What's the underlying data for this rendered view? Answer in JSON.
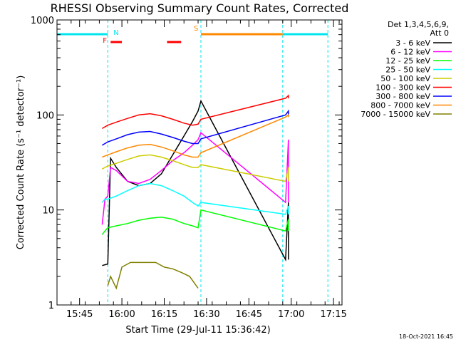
{
  "chart_data": {
    "type": "line",
    "title": "RHESSI Observing Summary Count Rates, Corrected",
    "xlabel": "Start Time (29-Jul-11 15:36:42)",
    "ylabel": "Corrected Count Rate (s⁻¹ detector⁻¹)",
    "yscale": "log",
    "ylim": [
      1,
      1000
    ],
    "xlim": [
      "15:37",
      "17:18"
    ],
    "y_ticks": [
      "1",
      "10",
      "100",
      "1000"
    ],
    "x_ticks": [
      "15:45",
      "16:00",
      "16:15",
      "16:30",
      "16:45",
      "17:00",
      "17:15"
    ],
    "legend_header": [
      "Det 1,3,4,5,6,9,",
      "Att 0"
    ],
    "legend_position": "right",
    "footer_date": "18-Oct-2021 16:45",
    "flag_labels": [
      "N",
      "F",
      "S"
    ],
    "flags": {
      "night_lines": [
        "15:55",
        "16:28",
        "16:57",
        "17:13"
      ],
      "saa_level_segments": [
        [
          "15:37",
          "15:55"
        ],
        [
          "16:28",
          "16:57"
        ],
        [
          "16:57",
          "17:13"
        ]
      ],
      "flare_segments": [
        [
          "15:56",
          "16:00"
        ],
        [
          "16:16",
          "16:21"
        ]
      ]
    },
    "series": [
      {
        "name": "3 - 6 keV",
        "color": "#000000",
        "x": [
          "15:53",
          "15:55",
          "15:56",
          "15:58",
          "16:02",
          "16:06",
          "16:10",
          "16:14",
          "16:18",
          "16:22",
          "16:25",
          "16:27",
          "16:28",
          "16:58",
          "16:59",
          "16:59"
        ],
        "y": [
          2.6,
          2.7,
          35,
          28,
          20,
          18,
          19,
          24,
          38,
          60,
          85,
          110,
          140,
          3,
          12,
          3
        ]
      },
      {
        "name": "6 - 12 keV",
        "color": "#ff00ff",
        "x": [
          "15:53",
          "15:54",
          "15:55",
          "15:56",
          "15:58",
          "16:02",
          "16:06",
          "16:10",
          "16:14",
          "16:18",
          "16:22",
          "16:25",
          "16:27",
          "16:28",
          "16:58",
          "16:59",
          "16:59"
        ],
        "y": [
          7,
          13,
          14,
          28,
          26,
          20,
          19,
          21,
          26,
          33,
          40,
          48,
          55,
          65,
          12,
          55,
          12
        ]
      },
      {
        "name": "12 - 25 keV",
        "color": "#00ff00",
        "x": [
          "15:53",
          "15:54",
          "15:55",
          "15:58",
          "16:02",
          "16:06",
          "16:10",
          "16:14",
          "16:18",
          "16:22",
          "16:25",
          "16:27",
          "16:28",
          "16:58",
          "16:59",
          "16:59"
        ],
        "y": [
          5.5,
          6,
          6.5,
          6.8,
          7.2,
          7.8,
          8.2,
          8.4,
          8,
          7.2,
          6.8,
          6.5,
          10,
          6,
          8,
          6
        ]
      },
      {
        "name": "25 - 50 keV",
        "color": "#00ffff",
        "x": [
          "15:53",
          "15:54",
          "15:55",
          "15:58",
          "16:02",
          "16:06",
          "16:10",
          "16:14",
          "16:18",
          "16:22",
          "16:25",
          "16:27",
          "16:28",
          "16:58",
          "16:59",
          "16:59"
        ],
        "y": [
          12,
          13,
          13,
          14,
          16,
          18,
          19,
          18,
          16,
          14,
          12,
          11,
          12,
          9,
          11,
          9
        ]
      },
      {
        "name": "50 - 100 keV",
        "color": "#cccc00",
        "x": [
          "15:53",
          "15:54",
          "15:55",
          "15:58",
          "16:02",
          "16:06",
          "16:10",
          "16:14",
          "16:18",
          "16:22",
          "16:25",
          "16:27",
          "16:28",
          "16:58",
          "16:59",
          "16:59"
        ],
        "y": [
          27,
          28,
          29,
          31,
          34,
          37,
          38,
          36,
          33,
          30,
          28,
          28,
          30,
          20,
          28,
          20
        ]
      },
      {
        "name": "100 - 300 keV",
        "color": "#ff0000",
        "x": [
          "15:53",
          "15:54",
          "15:55",
          "15:58",
          "16:02",
          "16:06",
          "16:10",
          "16:14",
          "16:18",
          "16:22",
          "16:25",
          "16:27",
          "16:28",
          "16:58",
          "16:59",
          "16:59"
        ],
        "y": [
          72,
          75,
          78,
          84,
          92,
          100,
          103,
          98,
          90,
          82,
          78,
          80,
          90,
          150,
          160,
          150
        ]
      },
      {
        "name": "300 - 800 keV",
        "color": "#0000ff",
        "x": [
          "15:53",
          "15:54",
          "15:55",
          "15:58",
          "16:02",
          "16:06",
          "16:10",
          "16:14",
          "16:18",
          "16:22",
          "16:25",
          "16:27",
          "16:28",
          "16:58",
          "16:59",
          "16:59"
        ],
        "y": [
          48,
          50,
          52,
          56,
          62,
          66,
          67,
          63,
          58,
          53,
          50,
          50,
          56,
          100,
          110,
          100
        ]
      },
      {
        "name": "800 - 7000 keV",
        "color": "#ff8800",
        "x": [
          "15:53",
          "15:54",
          "15:55",
          "15:58",
          "16:02",
          "16:06",
          "16:10",
          "16:14",
          "16:18",
          "16:22",
          "16:25",
          "16:27",
          "16:28",
          "16:58",
          "16:59",
          "16:59"
        ],
        "y": [
          36,
          37,
          38,
          41,
          45,
          48,
          49,
          46,
          42,
          38,
          36,
          36,
          40,
          95,
          100,
          95
        ]
      },
      {
        "name": "7000 - 15000 keV",
        "color": "#808000",
        "x": [
          "15:55",
          "15:56",
          "15:58",
          "16:00",
          "16:03",
          "16:06",
          "16:09",
          "16:12",
          "16:15",
          "16:18",
          "16:21",
          "16:24",
          "16:27"
        ],
        "y": [
          1.6,
          2,
          1.5,
          2.5,
          2.8,
          2.8,
          2.8,
          2.8,
          2.5,
          2.4,
          2.2,
          2,
          1.5
        ]
      }
    ]
  }
}
